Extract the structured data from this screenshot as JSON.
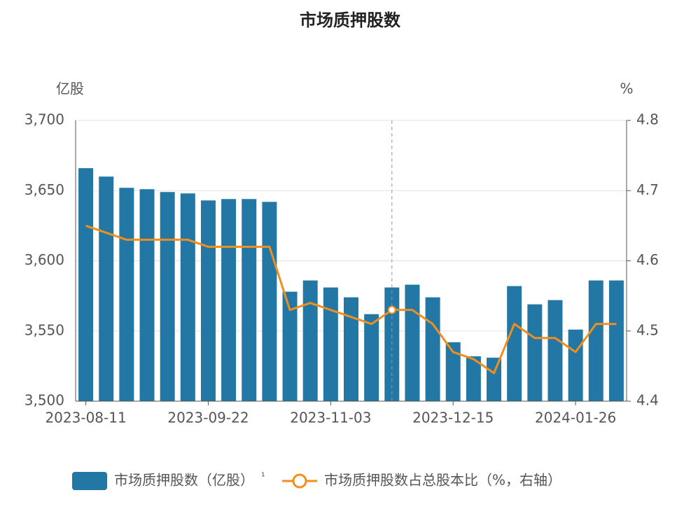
{
  "chart_data": {
    "type": "bar-line",
    "title": "市场质押股数",
    "y_label": "亿股",
    "y2_label": "%",
    "categories": [
      "2023-08-11",
      null,
      null,
      null,
      null,
      null,
      "2023-09-22",
      null,
      null,
      null,
      null,
      null,
      "2023-11-03",
      null,
      null,
      null,
      null,
      null,
      "2023-12-15",
      null,
      null,
      null,
      null,
      null,
      "2024-01-26",
      null,
      null
    ],
    "series": [
      {
        "name": "市场质押股数（亿股）",
        "name_note": "¹",
        "type": "bar",
        "color": "#2277a4",
        "values": [
          3666,
          3660,
          3652,
          3651,
          3649,
          3648,
          3643,
          3644,
          3644,
          3642,
          3578,
          3586,
          3581,
          3574,
          3562,
          3581,
          3583,
          3574,
          3542,
          3532,
          3531,
          3582,
          3569,
          3572,
          3551,
          3586,
          3586
        ]
      },
      {
        "name": "市场质押股数占总股本比（%，右轴）",
        "type": "line",
        "axis": "y2",
        "color": "#f28e1e",
        "values": [
          4.65,
          4.64,
          4.63,
          4.63,
          4.63,
          4.63,
          4.62,
          4.62,
          4.62,
          4.62,
          4.53,
          4.54,
          4.53,
          4.52,
          4.51,
          4.53,
          4.53,
          4.51,
          4.47,
          4.46,
          4.44,
          4.51,
          4.49,
          4.49,
          4.47,
          4.51,
          4.51
        ]
      }
    ],
    "ylim": [
      3500,
      3700
    ],
    "yticks": [
      {
        "value": 3500,
        "label": "3,500"
      },
      {
        "value": 3550,
        "label": "3,550"
      },
      {
        "value": 3600,
        "label": "3,600"
      },
      {
        "value": 3650,
        "label": "3,650"
      },
      {
        "value": 3700,
        "label": "3,700"
      }
    ],
    "y2lim": [
      4.4,
      4.8
    ],
    "y2ticks": [
      4.4,
      4.5,
      4.6,
      4.7,
      4.8
    ],
    "grid": true,
    "highlight_index": 15
  }
}
